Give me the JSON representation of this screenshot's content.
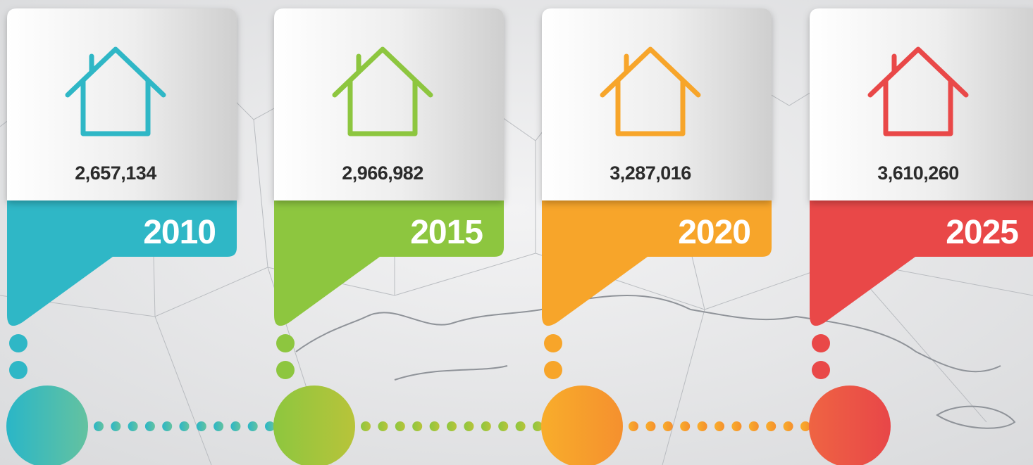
{
  "cards": [
    {
      "value": "2,657,134",
      "year": "2010"
    },
    {
      "value": "2,966,982",
      "year": "2015"
    },
    {
      "value": "3,287,016",
      "year": "2020"
    },
    {
      "value": "3,610,260",
      "year": "2025"
    }
  ]
}
